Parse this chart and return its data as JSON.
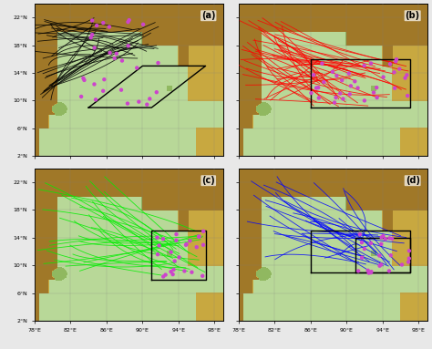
{
  "xlim": [
    78,
    99
  ],
  "ylim": [
    2,
    24
  ],
  "xticks": [
    78,
    82,
    86,
    90,
    94,
    98
  ],
  "yticks": [
    2,
    6,
    10,
    14,
    18,
    22
  ],
  "panels": [
    "(a)",
    "(b)",
    "(c)",
    "(d)"
  ],
  "track_colors": [
    "black",
    "red",
    "#00ee00",
    "blue"
  ],
  "dot_color": "#cc44cc",
  "figsize": [
    4.74,
    3.83
  ],
  "dpi": 100,
  "hspace": 0.08,
  "wspace": 0.08
}
